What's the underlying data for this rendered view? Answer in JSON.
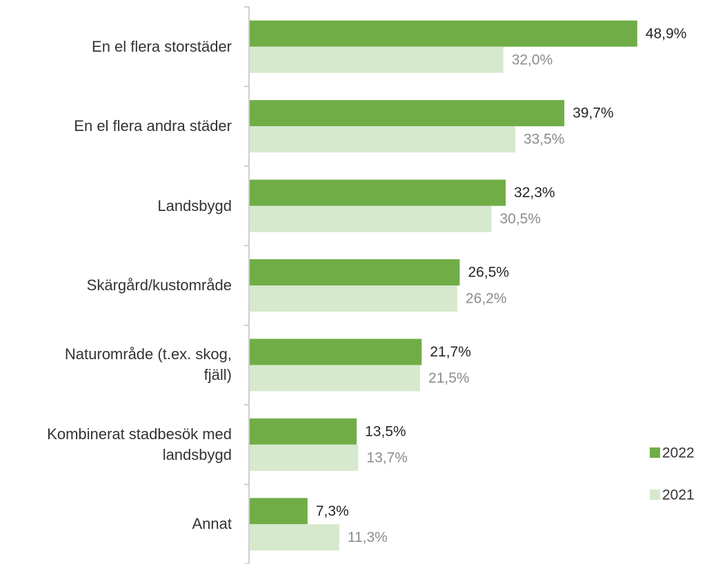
{
  "chart_data": {
    "type": "bar",
    "orientation": "horizontal",
    "categories": [
      "En el flera storstäder",
      "En el flera andra städer",
      "Landsbygd",
      "Skärgård/kustområde",
      "Naturområde (t.ex. skog, fjäll)",
      "Kombinerat stadbesök med landsbygd",
      "Annat"
    ],
    "series": [
      {
        "name": "2022",
        "color": "#70ad47",
        "values": [
          48.9,
          39.7,
          32.3,
          26.5,
          21.7,
          13.5,
          7.3
        ],
        "value_labels": [
          "48,9%",
          "39,7%",
          "32,3%",
          "26,5%",
          "21,7%",
          "13,5%",
          "7,3%"
        ]
      },
      {
        "name": "2021",
        "color": "#d6e9cd",
        "values": [
          32.0,
          33.5,
          30.5,
          26.2,
          21.5,
          13.7,
          11.3
        ],
        "value_labels": [
          "32,0%",
          "33,5%",
          "30,5%",
          "26,2%",
          "21,5%",
          "13,7%",
          "11,3%"
        ]
      }
    ],
    "xlim": [
      0,
      55
    ],
    "legend": "right"
  }
}
